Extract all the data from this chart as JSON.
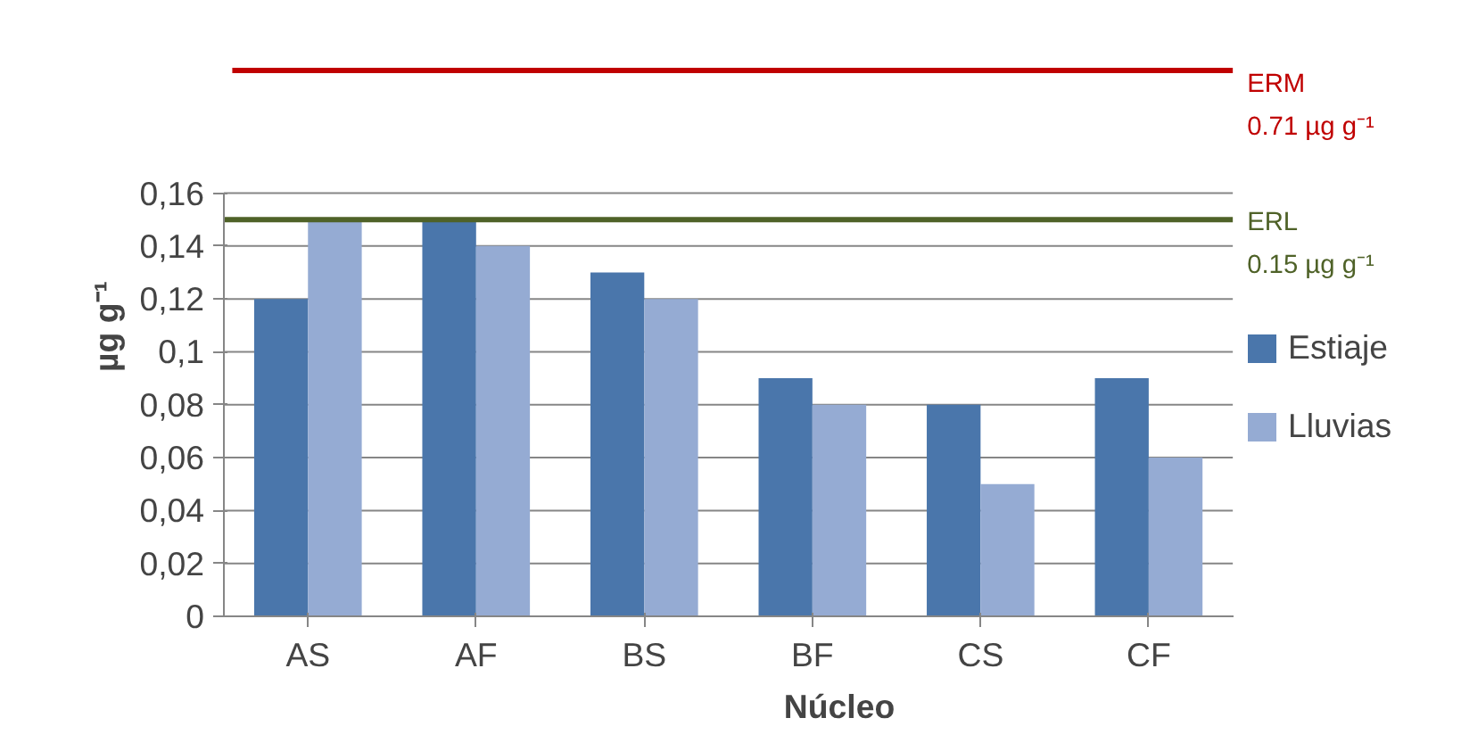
{
  "chart_data": {
    "type": "bar",
    "xlabel": "Núcleo",
    "ylabel": "µg g⁻¹",
    "categories": [
      "AS",
      "AF",
      "BS",
      "BF",
      "CS",
      "CF"
    ],
    "series": [
      {
        "name": "Estiaje",
        "color": "#4a76ab",
        "values": [
          0.12,
          0.15,
          0.13,
          0.09,
          0.08,
          0.09
        ]
      },
      {
        "name": "Lluvias",
        "color": "#95abd3",
        "values": [
          0.15,
          0.14,
          0.12,
          0.08,
          0.05,
          0.06
        ]
      }
    ],
    "ylim": [
      0,
      0.16
    ],
    "yticks": [
      0,
      {
        "value": 0.02,
        "label": "0,02"
      },
      {
        "value": 0.04,
        "label": "0,04"
      },
      {
        "value": 0.06,
        "label": "0,06"
      },
      {
        "value": 0.08,
        "label": "0,08"
      },
      {
        "value": 0.1,
        "label": "0,1"
      },
      {
        "value": 0.12,
        "label": "0,12"
      },
      {
        "value": 0.14,
        "label": "0,14"
      },
      {
        "value": 0.16,
        "label": "0,16"
      }
    ],
    "ref_lines": [
      {
        "axis": "y",
        "value": 0.15,
        "label": "ERL\n0.15 µg g⁻¹",
        "color": "#4f6228"
      }
    ],
    "annotations": [
      "ERM\n0.71 µg g⁻¹"
    ],
    "grid": "y",
    "legend": "right"
  }
}
